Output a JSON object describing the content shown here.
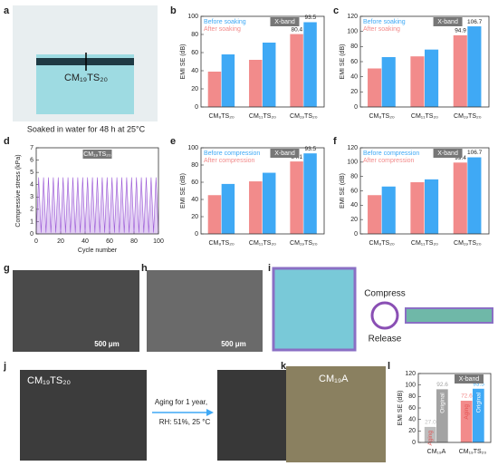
{
  "panels": {
    "letters": [
      "a",
      "b",
      "c",
      "d",
      "e",
      "f",
      "g",
      "h",
      "i",
      "j",
      "k",
      "l"
    ],
    "a": {
      "label": "CM₁₉TS₂₀",
      "caption": "Soaked in water for 48 h at 25°C"
    },
    "g": {
      "scale": "500 μm"
    },
    "h": {
      "scale": "500 μm"
    },
    "i": {
      "compress": "Compress",
      "release": "Release"
    },
    "j": {
      "label": "CM₁₉TS₂₀",
      "arrow_top": "Aging for 1 year,",
      "arrow_bottom": "RH: 51%, 25 °C"
    },
    "k": {
      "label": "CM₁₉A"
    }
  },
  "chart_data": [
    {
      "type": "bar",
      "ylabel": "EMI SE (dB)",
      "tag": "X-band",
      "legend": "upper left",
      "categories": [
        "CM₈TS₂₀",
        "CM₁₁TS₂₀",
        "CM₁₉TS₂₀"
      ],
      "series": [
        {
          "name": "After soaking",
          "color": "#f28b8b",
          "values": [
            39,
            52,
            80.4
          ],
          "value_labels": [
            null,
            null,
            "80.4"
          ]
        },
        {
          "name": "Before soaking",
          "color": "#3fa9f5",
          "values": [
            58,
            71,
            93.5
          ],
          "value_labels": [
            null,
            null,
            "93.5"
          ]
        }
      ],
      "ylim": [
        0,
        100
      ],
      "yticks": [
        0,
        20,
        40,
        60,
        80,
        100
      ]
    },
    {
      "type": "bar",
      "ylabel": "EMI SE (dB)",
      "tag": "X-band",
      "legend": "upper left",
      "categories": [
        "CM₈TS₂₀",
        "CM₁₁TS₂₀",
        "CM₁₉TS₂₀"
      ],
      "series": [
        {
          "name": "After soaking",
          "color": "#f28b8b",
          "values": [
            51,
            67,
            94.9
          ],
          "value_labels": [
            null,
            null,
            "94.9"
          ]
        },
        {
          "name": "Before soaking",
          "color": "#3fa9f5",
          "values": [
            66,
            76,
            106.7
          ],
          "value_labels": [
            null,
            null,
            "106.7"
          ]
        }
      ],
      "ylim": [
        0,
        120
      ],
      "yticks": [
        0,
        20,
        40,
        60,
        80,
        100,
        120
      ]
    },
    {
      "type": "line",
      "ylabel": "Compressive stress (kPa)",
      "xlabel": "Cycle number",
      "tag": "CM₁₉TS₂₀",
      "color": "#9b59d6",
      "x": [
        0,
        2,
        4,
        6,
        8,
        10,
        12,
        14,
        16,
        18,
        20,
        22,
        24,
        26,
        28,
        30,
        32,
        34,
        36,
        38,
        40,
        42,
        44,
        46,
        48,
        50,
        52,
        54,
        56,
        58,
        60,
        62,
        64,
        66,
        68,
        70,
        72,
        74,
        76,
        78,
        80,
        82,
        84,
        86,
        88,
        90,
        92,
        94,
        96,
        98,
        100
      ],
      "values": [
        0.1,
        4.6,
        0.1,
        4.6,
        0.1,
        4.6,
        0.1,
        4.6,
        0.1,
        4.6,
        0.1,
        4.6,
        0.1,
        4.6,
        0.1,
        4.6,
        0.1,
        4.6,
        0.1,
        4.6,
        0.1,
        4.6,
        0.1,
        4.6,
        0.1,
        4.6,
        0.1,
        4.6,
        0.1,
        4.6,
        0.1,
        4.6,
        0.1,
        4.6,
        0.1,
        4.6,
        0.1,
        4.6,
        0.1,
        4.6,
        0.1,
        4.6,
        0.1,
        4.6,
        0.1,
        4.6,
        0.1,
        4.6,
        0.1,
        4.6,
        0.1
      ],
      "xlim": [
        0,
        100
      ],
      "xticks": [
        0,
        20,
        40,
        60,
        80,
        100
      ],
      "ylim": [
        0,
        7
      ],
      "yticks": [
        0,
        1,
        2,
        3,
        4,
        5,
        6,
        7
      ]
    },
    {
      "type": "bar",
      "ylabel": "EMI SE (dB)",
      "tag": "X-band",
      "legend": "upper left",
      "categories": [
        "CM₈TS₂₀",
        "CM₁₁TS₂₀",
        "CM₁₉TS₂₀"
      ],
      "series": [
        {
          "name": "After compression",
          "color": "#f28b8b",
          "values": [
            45,
            61,
            84.1
          ],
          "value_labels": [
            null,
            null,
            "84.1"
          ]
        },
        {
          "name": "Before compression",
          "color": "#3fa9f5",
          "values": [
            58,
            71,
            93.5
          ],
          "value_labels": [
            null,
            null,
            "93.5"
          ]
        }
      ],
      "ylim": [
        0,
        100
      ],
      "yticks": [
        0,
        20,
        40,
        60,
        80,
        100
      ]
    },
    {
      "type": "bar",
      "ylabel": "EMI SE (dB)",
      "tag": "X-band",
      "legend": "upper left",
      "categories": [
        "CM₈TS₂₀",
        "CM₁₁TS₂₀",
        "CM₁₉TS₂₀"
      ],
      "series": [
        {
          "name": "After compression",
          "color": "#f28b8b",
          "values": [
            54,
            72,
            99.4
          ],
          "value_labels": [
            null,
            null,
            "99.4"
          ]
        },
        {
          "name": "Before compression",
          "color": "#3fa9f5",
          "values": [
            66,
            76,
            106.7
          ],
          "value_labels": [
            null,
            null,
            "106.7"
          ]
        }
      ],
      "ylim": [
        0,
        120
      ],
      "yticks": [
        0,
        20,
        40,
        60,
        80,
        100,
        120
      ]
    },
    {
      "type": "bar",
      "ylabel": "EMI SE (dB)",
      "tag": "X-band",
      "legend": "in-bar",
      "categories": [
        "CM₁₉A",
        "CM₁₉TS₂₀"
      ],
      "series": [
        {
          "name": "Aging",
          "colors": [
            "#bdbdbd",
            "#f28b8b"
          ],
          "values": [
            27.0,
            72.6
          ],
          "value_labels": [
            "27.0",
            "72.6"
          ]
        },
        {
          "name": "Original",
          "colors": [
            "#a3a3a3",
            "#3fa9f5"
          ],
          "values": [
            92.6,
            93.5
          ],
          "value_labels": [
            "92.6",
            "93.5"
          ]
        }
      ],
      "ylim": [
        0,
        120
      ],
      "yticks": [
        0,
        20,
        40,
        60,
        80,
        100,
        120
      ]
    }
  ]
}
